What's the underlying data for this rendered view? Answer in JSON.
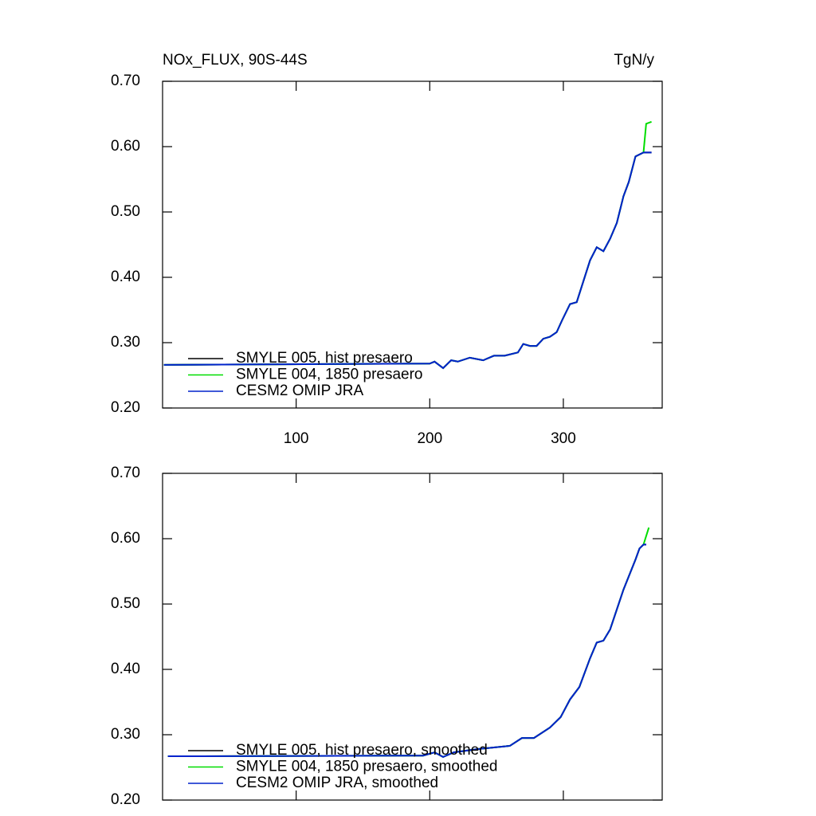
{
  "chart_data": [
    {
      "type": "line",
      "title": "NOx_FLUX, 90S-44S",
      "subtitle": "TgN/y",
      "x": [
        1,
        200,
        203.6,
        210,
        216,
        221,
        230,
        240,
        248,
        256,
        266,
        270,
        275,
        280,
        285,
        290,
        295,
        299,
        305,
        310,
        320,
        325,
        330,
        335,
        340,
        345,
        349,
        354,
        360,
        362,
        366
      ],
      "series": [
        {
          "name": "SMYLE 005, hist presaero",
          "color": "#000000",
          "values": [
            0.266,
            0.268,
            0.271,
            0.261,
            0.273,
            0.271,
            0.277,
            0.273,
            0.28,
            0.28,
            0.285,
            0.298,
            0.295,
            0.295,
            0.306,
            0.309,
            0.316,
            0.334,
            0.359,
            0.362,
            0.426,
            0.446,
            0.44,
            0.459,
            0.483,
            0.524,
            0.546,
            0.585,
            0.591,
            0.591,
            0.591
          ]
        },
        {
          "name": "SMYLE 004, 1850 presaero",
          "color": "#00dd00",
          "values": [
            0.266,
            0.268,
            0.271,
            0.261,
            0.273,
            0.271,
            0.277,
            0.273,
            0.28,
            0.28,
            0.285,
            0.298,
            0.295,
            0.295,
            0.306,
            0.309,
            0.316,
            0.334,
            0.359,
            0.362,
            0.426,
            0.446,
            0.44,
            0.459,
            0.483,
            0.524,
            0.546,
            0.585,
            0.591,
            0.635,
            0.638
          ]
        },
        {
          "name": "CESM2 OMIP JRA",
          "color": "#0022cc",
          "values": [
            0.266,
            0.268,
            0.271,
            0.261,
            0.273,
            0.271,
            0.277,
            0.273,
            0.28,
            0.28,
            0.285,
            0.298,
            0.295,
            0.295,
            0.306,
            0.309,
            0.316,
            0.334,
            0.359,
            0.362,
            0.426,
            0.446,
            0.44,
            0.459,
            0.483,
            0.524,
            0.546,
            0.585,
            0.591,
            0.591,
            0.591
          ]
        }
      ],
      "xlim": [
        0,
        374
      ],
      "xticks": [
        100,
        200,
        300
      ],
      "ylim": [
        0.2,
        0.7
      ],
      "yticks": [
        {
          "value": 0.2,
          "label": "0.20"
        },
        {
          "value": 0.3,
          "label": "0.30"
        },
        {
          "value": 0.4,
          "label": "0.40"
        },
        {
          "value": 0.5,
          "label": "0.50"
        },
        {
          "value": 0.6,
          "label": "0.60"
        },
        {
          "value": 0.7,
          "label": "0.70"
        }
      ],
      "legend": "lower left"
    },
    {
      "type": "line",
      "x": [
        4,
        195,
        203.6,
        210,
        218,
        236,
        260,
        269,
        278,
        290,
        298,
        305,
        312,
        320,
        325,
        330,
        335,
        345,
        354,
        357,
        360,
        362,
        364
      ],
      "series": [
        {
          "name": "SMYLE 005, hist presaero, smoothed",
          "color": "#000000",
          "values": [
            0.267,
            0.268,
            0.273,
            0.266,
            0.273,
            0.278,
            0.283,
            0.295,
            0.295,
            0.311,
            0.327,
            0.354,
            0.373,
            0.417,
            0.441,
            0.444,
            0.461,
            0.522,
            0.568,
            0.585,
            0.591,
            0.591,
            null
          ]
        },
        {
          "name": "SMYLE 004, 1850 presaero, smoothed",
          "color": "#00dd00",
          "values": [
            0.267,
            0.268,
            0.273,
            0.266,
            0.273,
            0.278,
            0.283,
            0.295,
            0.295,
            0.311,
            0.327,
            0.354,
            0.373,
            0.417,
            0.441,
            0.444,
            0.461,
            0.522,
            0.568,
            0.585,
            0.591,
            0.604,
            0.617
          ]
        },
        {
          "name": "CESM2 OMIP JRA, smoothed",
          "color": "#0022cc",
          "values": [
            0.267,
            0.268,
            0.273,
            0.266,
            0.273,
            0.278,
            0.283,
            0.295,
            0.295,
            0.311,
            0.327,
            0.354,
            0.373,
            0.417,
            0.441,
            0.444,
            0.461,
            0.522,
            0.568,
            0.585,
            0.591,
            0.591,
            null
          ]
        }
      ],
      "xlim": [
        0,
        374
      ],
      "xticks": [
        100,
        200,
        300
      ],
      "ylim": [
        0.2,
        0.7
      ],
      "yticks": [
        {
          "value": 0.2,
          "label": "0.20"
        },
        {
          "value": 0.3,
          "label": "0.30"
        },
        {
          "value": 0.4,
          "label": "0.40"
        },
        {
          "value": 0.5,
          "label": "0.50"
        },
        {
          "value": 0.6,
          "label": "0.60"
        },
        {
          "value": 0.7,
          "label": "0.70"
        }
      ],
      "legend": "lower left"
    }
  ]
}
